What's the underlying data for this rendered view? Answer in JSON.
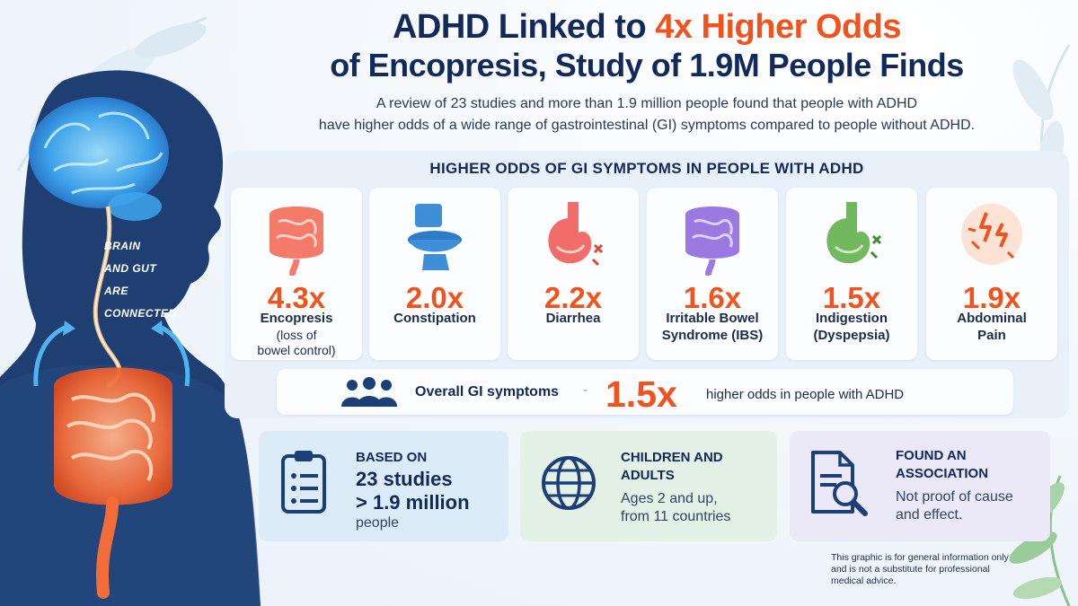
{
  "header": {
    "title_line1_a": "ADHD Linked to ",
    "title_line1_highlight": "4x Higher Odds",
    "title_line2": "of Encopresis, Study of 1.9M People Finds",
    "intro_line1": "A review of 23 studies and more than 1.9 million people found that people with ADHD",
    "intro_line2": "have higher odds of a wide range of gastrointestinal (GI) symptoms compared to people without ADHD."
  },
  "figure": {
    "brain_label_1": "BRAIN",
    "brain_label_2": "AND GUT",
    "brain_label_3": "ARE",
    "brain_label_4": "CONNECTED"
  },
  "panel": {
    "title": "HIGHER ODDS OF GI SYMPTOMS IN PEOPLE WITH ADHD",
    "symptoms": [
      {
        "value": "4.3x",
        "label": "Encopresis",
        "sub1": "(loss of",
        "sub2": "bowel control)",
        "icon": "intestine-icon"
      },
      {
        "value": "2.0x",
        "label": "Constipation",
        "icon": "toilet-icon"
      },
      {
        "value": "2.2x",
        "label": "Diarrhea",
        "icon": "stomach-icon"
      },
      {
        "value": "1.6x",
        "label": "Irritable Bowel",
        "label2": "Syndrome (IBS)",
        "icon": "intestine-icon"
      },
      {
        "value": "1.5x",
        "label": "Indigestion",
        "label2": "(Dyspepsia)",
        "icon": "stomach-icon"
      },
      {
        "value": "1.9x",
        "label": "Abdominal",
        "label2": "Pain",
        "icon": "pain-burst-icon"
      }
    ],
    "overall": {
      "label": "Overall GI symptoms",
      "dash": "-",
      "value": "1.5x",
      "text": "higher odds in people with ADHD"
    }
  },
  "cards": {
    "based_on": {
      "head": "BASED ON",
      "big1": "23 studies",
      "big2": "> 1.9 million",
      "body": "people",
      "icon": "clipboard-icon"
    },
    "population": {
      "head1": "CHILDREN AND",
      "head2": "ADULTS",
      "body1": "Ages 2 and up,",
      "body2": "from 11 countries",
      "icon": "globe-icon"
    },
    "association": {
      "head1": "FOUND AN",
      "head2": "ASSOCIATION",
      "body1": "Not proof of cause",
      "body2": "and effect.",
      "icon": "document-search-icon"
    }
  },
  "disclaimer": {
    "line1": "This graphic is for general information only",
    "line2": "and is not a substitute for professional",
    "line3": "medical advice."
  },
  "colors": {
    "accent": "#f0531e",
    "navy": "#12295a",
    "card_blue": "#dcebf8",
    "card_green": "#e3f1e6",
    "card_purple": "#ebe8f7"
  }
}
